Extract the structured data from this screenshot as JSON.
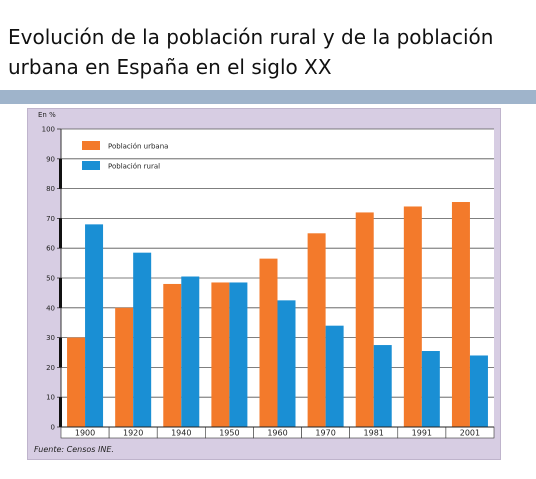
{
  "slide": {
    "title_line1": "Evolución de la población rural y de la población",
    "title_line2": "urbana en España en el siglo XX"
  },
  "colors": {
    "urban": "#f37a2b",
    "rural": "#1a8fd4",
    "panel": "#d7cde3",
    "rule": "#9fb4cb"
  },
  "chart_data": {
    "type": "bar",
    "unit_label": "En %",
    "categories": [
      "1900",
      "1920",
      "1940",
      "1950",
      "1960",
      "1970",
      "1981",
      "1991",
      "2001"
    ],
    "series": [
      {
        "name": "Población urbana",
        "values": [
          30,
          40,
          48,
          48.5,
          56.5,
          65,
          72,
          74,
          75.5
        ]
      },
      {
        "name": "Población rural",
        "values": [
          68,
          58.5,
          50.5,
          48.5,
          42.5,
          34,
          27.5,
          25.5,
          24
        ]
      }
    ],
    "ylim": [
      0,
      100
    ],
    "yticks": [
      0,
      10,
      20,
      30,
      40,
      50,
      60,
      70,
      80,
      90,
      100
    ],
    "grid": true,
    "legend": "top-left",
    "source": "Fuente: Censos INE."
  }
}
